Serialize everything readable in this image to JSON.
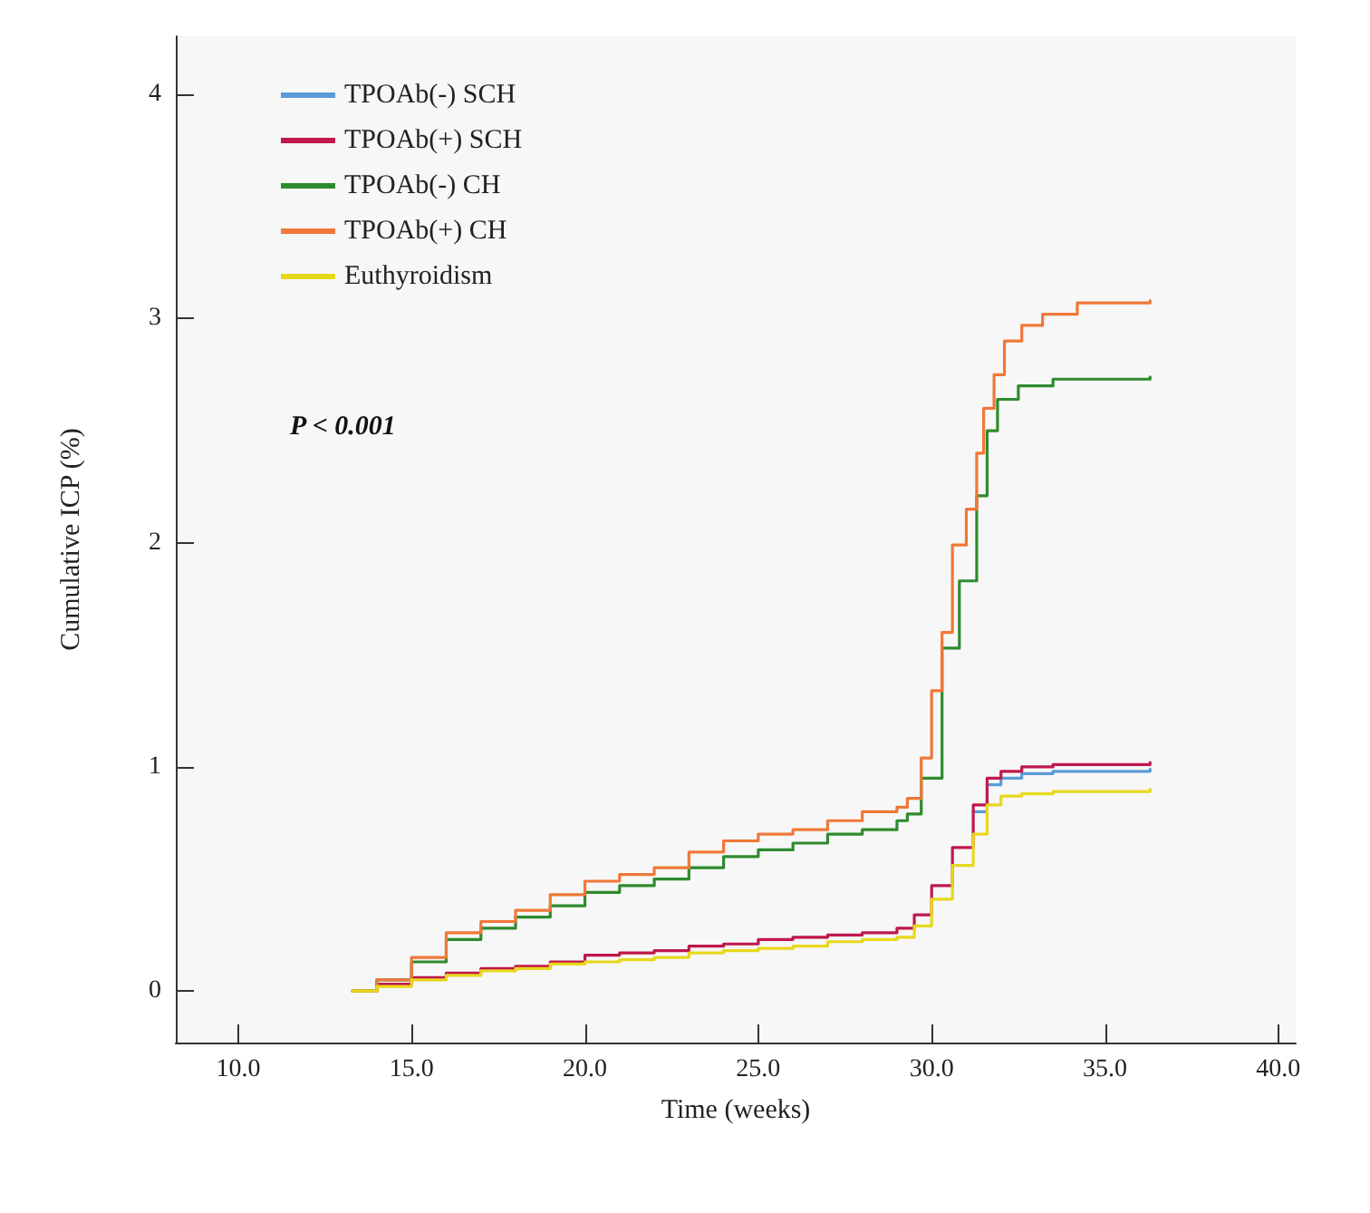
{
  "chart_data": {
    "type": "step",
    "xlabel": "Time (weeks)",
    "ylabel": "Cumulative ICP (%)",
    "annotations": [
      "P < 0.001"
    ],
    "xlim": [
      8.2,
      40.5
    ],
    "xticks": [
      {
        "value": 10,
        "label": "10.0"
      },
      {
        "value": 15,
        "label": "15.0"
      },
      {
        "value": 20,
        "label": "20.0"
      },
      {
        "value": 25,
        "label": "25.0"
      },
      {
        "value": 30,
        "label": "30.0"
      },
      {
        "value": 35,
        "label": "35.0"
      },
      {
        "value": 40,
        "label": "40.0"
      }
    ],
    "ylim": [
      -0.23,
      4.26
    ],
    "yticks": [
      0,
      1,
      2,
      3,
      4
    ],
    "grid": false,
    "legend": "top left",
    "marker": "none",
    "line_style": "solid",
    "series": [
      {
        "name": "TPOAb(-) SCH",
        "color": "#5b9bd5",
        "x": [
          31.2,
          31.6,
          32,
          32.6,
          33.5,
          36.3
        ],
        "values": [
          0.8,
          0.92,
          0.95,
          0.97,
          0.98,
          0.99
        ]
      },
      {
        "name": "TPOAb(+) SCH",
        "color": "#c0184b",
        "x": [
          13.3,
          14,
          15,
          16,
          17,
          18,
          19,
          20,
          21,
          22,
          23,
          24,
          25,
          26,
          27,
          28,
          29,
          29.5,
          30,
          30.6,
          31.2,
          31.6,
          32,
          32.6,
          33.5,
          36.3
        ],
        "values": [
          0,
          0.03,
          0.06,
          0.08,
          0.1,
          0.11,
          0.13,
          0.16,
          0.17,
          0.18,
          0.2,
          0.21,
          0.23,
          0.24,
          0.25,
          0.26,
          0.28,
          0.34,
          0.47,
          0.64,
          0.83,
          0.95,
          0.98,
          1.0,
          1.01,
          1.02
        ]
      },
      {
        "name": "TPOAb(-) CH",
        "color": "#2e8b2e",
        "x": [
          13.3,
          14,
          15,
          16,
          17,
          18,
          19,
          20,
          21,
          22,
          23,
          24,
          25,
          26,
          27,
          28,
          29,
          29.3,
          29.7,
          30.3,
          30.8,
          31.3,
          31.6,
          31.9,
          32.5,
          33.5,
          36.3
        ],
        "values": [
          0,
          0.05,
          0.13,
          0.23,
          0.28,
          0.33,
          0.38,
          0.44,
          0.47,
          0.5,
          0.55,
          0.6,
          0.63,
          0.66,
          0.7,
          0.72,
          0.76,
          0.79,
          0.95,
          1.53,
          1.83,
          2.21,
          2.5,
          2.64,
          2.7,
          2.73,
          2.74
        ]
      },
      {
        "name": "TPOAb(+) CH",
        "color": "#f07838",
        "x": [
          13.3,
          14,
          15,
          16,
          17,
          18,
          19,
          20,
          21,
          22,
          23,
          24,
          25,
          26,
          27,
          28,
          29,
          29.3,
          29.7,
          30,
          30.3,
          30.6,
          31,
          31.3,
          31.5,
          31.8,
          32.1,
          32.6,
          33.2,
          34.2,
          36.3
        ],
        "values": [
          0,
          0.05,
          0.15,
          0.26,
          0.31,
          0.36,
          0.43,
          0.49,
          0.52,
          0.55,
          0.62,
          0.67,
          0.7,
          0.72,
          0.76,
          0.8,
          0.82,
          0.86,
          1.04,
          1.34,
          1.6,
          1.99,
          2.15,
          2.4,
          2.6,
          2.75,
          2.9,
          2.97,
          3.02,
          3.07,
          3.08
        ]
      },
      {
        "name": "Euthyroidism",
        "color": "#e8d81c",
        "x": [
          13.3,
          14,
          15,
          16,
          17,
          18,
          19,
          20,
          21,
          22,
          23,
          24,
          25,
          26,
          27,
          28,
          29,
          29.5,
          30,
          30.6,
          31.2,
          31.6,
          32,
          32.6,
          33.5,
          36.3
        ],
        "values": [
          0,
          0.02,
          0.05,
          0.07,
          0.09,
          0.1,
          0.12,
          0.13,
          0.14,
          0.15,
          0.17,
          0.18,
          0.19,
          0.2,
          0.22,
          0.23,
          0.24,
          0.29,
          0.41,
          0.56,
          0.7,
          0.83,
          0.87,
          0.88,
          0.89,
          0.9
        ]
      }
    ]
  }
}
